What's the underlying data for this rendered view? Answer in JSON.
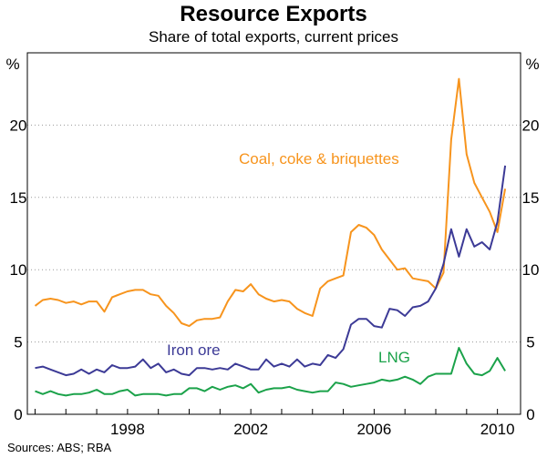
{
  "chart_data": {
    "type": "line",
    "title": "Resource Exports",
    "subtitle": "Share of total exports, current prices",
    "ylabel_left": "%",
    "ylabel_right": "%",
    "ylim": [
      0,
      25
    ],
    "yticks": [
      0,
      5,
      10,
      15,
      20
    ],
    "xlim": [
      1994.75,
      2010.75
    ],
    "xticks": [
      1998,
      2002,
      2006,
      2010
    ],
    "grid": "horizontal-dotted",
    "source": "Sources: ABS; RBA",
    "x": [
      1995.0,
      1995.25,
      1995.5,
      1995.75,
      1996.0,
      1996.25,
      1996.5,
      1996.75,
      1997.0,
      1997.25,
      1997.5,
      1997.75,
      1998.0,
      1998.25,
      1998.5,
      1998.75,
      1999.0,
      1999.25,
      1999.5,
      1999.75,
      2000.0,
      2000.25,
      2000.5,
      2000.75,
      2001.0,
      2001.25,
      2001.5,
      2001.75,
      2002.0,
      2002.25,
      2002.5,
      2002.75,
      2003.0,
      2003.25,
      2003.5,
      2003.75,
      2004.0,
      2004.25,
      2004.5,
      2004.75,
      2005.0,
      2005.25,
      2005.5,
      2005.75,
      2006.0,
      2006.25,
      2006.5,
      2006.75,
      2007.0,
      2007.25,
      2007.5,
      2007.75,
      2008.0,
      2008.25,
      2008.5,
      2008.75,
      2009.0,
      2009.25,
      2009.5,
      2009.75,
      2010.0,
      2010.25
    ],
    "series": [
      {
        "name": "Coal, coke & briquettes",
        "color": "#f7941d",
        "label": "Coal, coke & briquettes",
        "values": [
          7.5,
          7.9,
          8.0,
          7.9,
          7.7,
          7.8,
          7.6,
          7.8,
          7.8,
          7.1,
          8.1,
          8.3,
          8.5,
          8.6,
          8.6,
          8.3,
          8.2,
          7.5,
          7.0,
          6.3,
          6.1,
          6.5,
          6.6,
          6.6,
          6.7,
          7.8,
          8.6,
          8.5,
          9.0,
          8.3,
          8.0,
          7.8,
          7.9,
          7.8,
          7.3,
          7.0,
          6.8,
          8.7,
          9.2,
          9.4,
          9.6,
          12.6,
          13.1,
          12.9,
          12.4,
          11.4,
          10.7,
          10.0,
          10.1,
          9.4,
          9.3,
          9.2,
          8.7,
          9.8,
          19.0,
          23.2,
          18.0,
          16.0,
          15.0,
          14.0,
          12.6,
          15.6
        ]
      },
      {
        "name": "Iron ore",
        "color": "#3c3a96",
        "label": "Iron ore",
        "values": [
          3.2,
          3.3,
          3.1,
          2.9,
          2.7,
          2.8,
          3.1,
          2.8,
          3.1,
          2.9,
          3.4,
          3.2,
          3.2,
          3.3,
          3.8,
          3.2,
          3.5,
          2.9,
          3.1,
          2.8,
          2.7,
          3.2,
          3.2,
          3.1,
          3.2,
          3.1,
          3.5,
          3.3,
          3.1,
          3.1,
          3.8,
          3.3,
          3.5,
          3.3,
          3.8,
          3.3,
          3.5,
          3.4,
          4.1,
          3.9,
          4.5,
          6.2,
          6.6,
          6.6,
          6.1,
          6.0,
          7.3,
          7.2,
          6.8,
          7.4,
          7.5,
          7.8,
          8.7,
          10.4,
          12.8,
          10.9,
          12.8,
          11.6,
          11.9,
          11.4,
          13.3,
          17.2
        ]
      },
      {
        "name": "LNG",
        "color": "#1ba24a",
        "label": "LNG",
        "values": [
          1.6,
          1.4,
          1.6,
          1.4,
          1.3,
          1.4,
          1.4,
          1.5,
          1.7,
          1.4,
          1.4,
          1.6,
          1.7,
          1.3,
          1.4,
          1.4,
          1.4,
          1.3,
          1.4,
          1.4,
          1.8,
          1.8,
          1.6,
          1.9,
          1.7,
          1.9,
          2.0,
          1.8,
          2.1,
          1.5,
          1.7,
          1.8,
          1.8,
          1.9,
          1.7,
          1.6,
          1.5,
          1.6,
          1.6,
          2.2,
          2.1,
          1.9,
          2.0,
          2.1,
          2.2,
          2.4,
          2.3,
          2.4,
          2.6,
          2.4,
          2.1,
          2.6,
          2.8,
          2.8,
          2.8,
          4.6,
          3.5,
          2.8,
          2.7,
          3.0,
          3.9,
          3.0
        ]
      }
    ]
  }
}
